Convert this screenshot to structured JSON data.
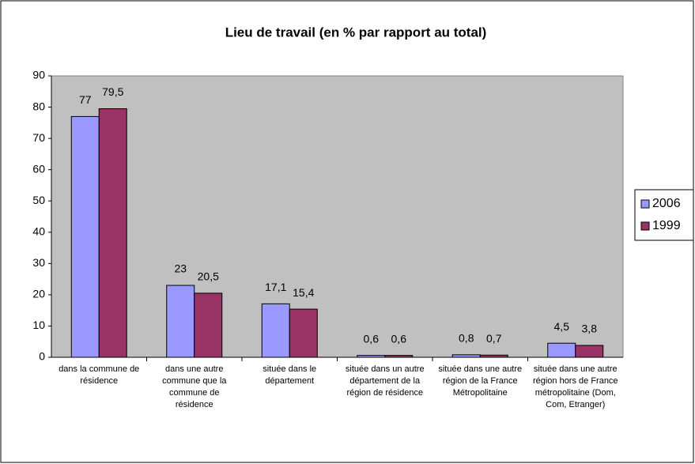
{
  "chart_data": {
    "type": "bar",
    "title": "Lieu de travail (en % par rapport au total)",
    "categories": [
      "dans la commune de résidence",
      "dans une autre commune que la commune de résidence",
      "située dans le département",
      "située dans un autre département de la région de résidence",
      "située dans une autre région de la France Métropolitaine",
      "située dans une autre région hors de France métropolitaine (Dom, Com, Etranger)"
    ],
    "series": [
      {
        "name": "2006",
        "color": "#9999ff",
        "values": [
          77,
          23,
          17.1,
          0.6,
          0.8,
          4.5
        ],
        "value_labels": [
          "77",
          "23",
          "17,1",
          "0,6",
          "0,8",
          "4,5"
        ]
      },
      {
        "name": "1999",
        "color": "#993366",
        "values": [
          79.5,
          20.5,
          15.4,
          0.6,
          0.7,
          3.8
        ],
        "value_labels": [
          "79,5",
          "20,5",
          "15,4",
          "0,6",
          "0,7",
          "3,8"
        ]
      }
    ],
    "ylim": [
      0,
      90
    ],
    "yticks": [
      0,
      10,
      20,
      30,
      40,
      50,
      60,
      70,
      80,
      90
    ],
    "grid": false,
    "legend": "right",
    "plot_background": "#c0c0c0"
  }
}
